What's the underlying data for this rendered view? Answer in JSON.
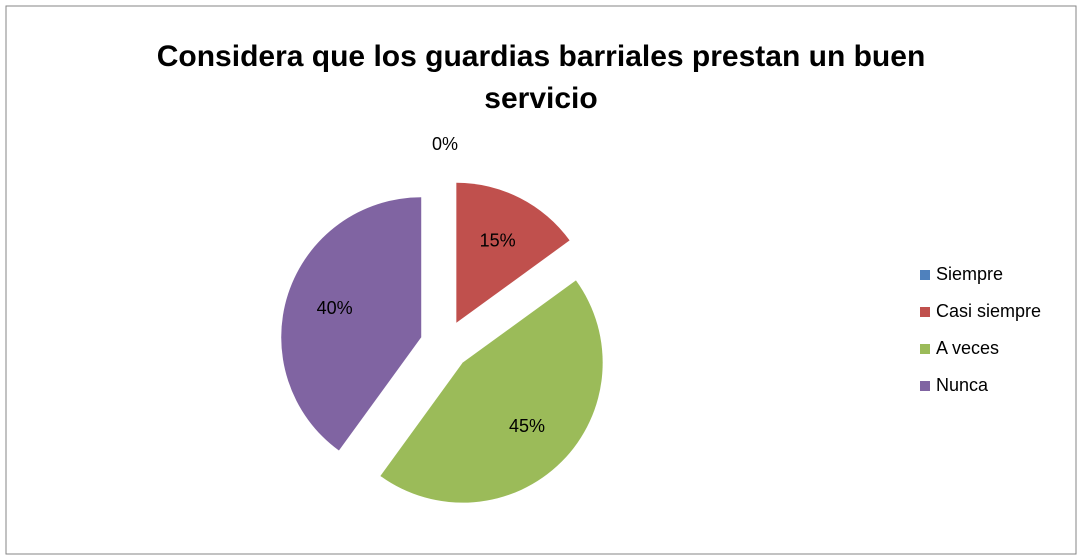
{
  "chart_data": {
    "type": "pie",
    "title": "Considera que los guardias barriales prestan un buen servicio",
    "categories": [
      "Siempre",
      "Casi siempre",
      "A veces",
      "Nunca"
    ],
    "values": [
      0,
      15,
      45,
      40
    ],
    "value_labels": [
      "0%",
      "15%",
      "45%",
      "40%"
    ],
    "colors": [
      "#4f81bd",
      "#c0504d",
      "#9bbb59",
      "#8064a2"
    ],
    "legend": "right"
  }
}
